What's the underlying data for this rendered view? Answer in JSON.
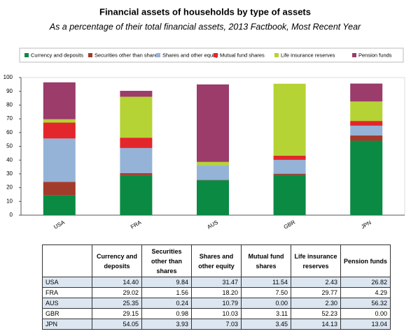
{
  "chart_data": {
    "type": "bar",
    "stacked": true,
    "title": "Financial assets of households by type of assets",
    "subtitle": "As a percentage of their total financial assets, 2013 Factbook, Most Recent Year",
    "categories": [
      "USA",
      "FRA",
      "AUS",
      "GBR",
      "JPN"
    ],
    "ylim": [
      0,
      100
    ],
    "yticks": [
      0,
      10,
      20,
      30,
      40,
      50,
      60,
      70,
      80,
      90,
      100
    ],
    "grid": false,
    "legend": "top",
    "series": [
      {
        "name": "Currency and deposits",
        "color": "#0b8a43",
        "values": [
          14.4,
          29.02,
          25.35,
          29.15,
          54.05
        ],
        "value_labels": [
          "14.40",
          "29.02",
          "25.35",
          "29.15",
          "54.05"
        ]
      },
      {
        "name": "Securities other than shares",
        "color": "#a23b2c",
        "values": [
          9.84,
          1.56,
          0.24,
          0.98,
          3.93
        ],
        "value_labels": [
          "9.84",
          "1.56",
          "0.24",
          "0.98",
          "3.93"
        ]
      },
      {
        "name": "Shares and other equity",
        "color": "#95b3d7",
        "values": [
          31.47,
          18.2,
          10.79,
          10.03,
          7.03
        ],
        "value_labels": [
          "31.47",
          "18.20",
          "10.79",
          "10.03",
          "7.03"
        ]
      },
      {
        "name": "Mutual fund shares",
        "color": "#e3262b",
        "values": [
          11.54,
          7.5,
          0,
          3.11,
          3.45
        ],
        "value_labels": [
          "11.54",
          "7.50",
          "0.00",
          "3.11",
          "3.45"
        ]
      },
      {
        "name": "Life insurance reserves",
        "color": "#b5d334",
        "values": [
          2.43,
          29.77,
          2.3,
          52.23,
          14.13
        ],
        "value_labels": [
          "2.43",
          "29.77",
          "2.30",
          "52.23",
          "14.13"
        ]
      },
      {
        "name": "Pension funds",
        "color": "#9b3c6b",
        "values": [
          26.82,
          4.29,
          56.32,
          0,
          13.04
        ],
        "value_labels": [
          "26.82",
          "4.29",
          "56.32",
          "0.00",
          "13.04"
        ]
      }
    ]
  }
}
